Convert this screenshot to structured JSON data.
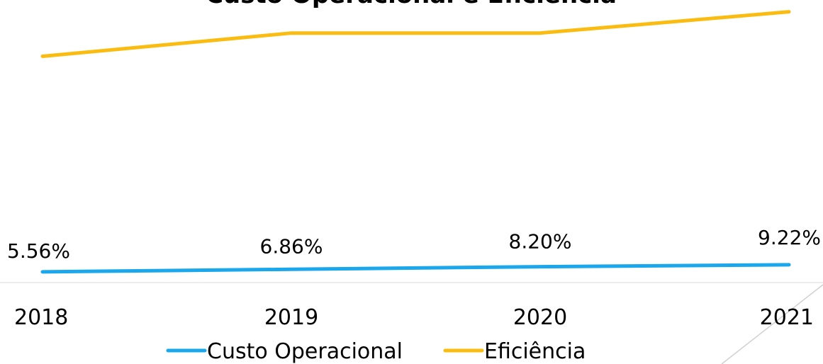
{
  "chart_data": {
    "type": "line",
    "title": "Custo Operacional e Eficiência",
    "categories": [
      "2018",
      "2019",
      "2020",
      "2021"
    ],
    "series": [
      {
        "name": "Custo Operacional",
        "color": "#1aa7ec",
        "values": [
          5.56,
          6.86,
          8.2,
          9.22
        ],
        "value_labels": [
          "5.56%",
          "6.86%",
          "8.20%",
          "9.22%"
        ]
      },
      {
        "name": "Eficiência",
        "color": "#fbbc12",
        "values": [
          117,
          129,
          129,
          140
        ]
      }
    ],
    "ylim": [
      0,
      145
    ],
    "legend": "bottom"
  }
}
